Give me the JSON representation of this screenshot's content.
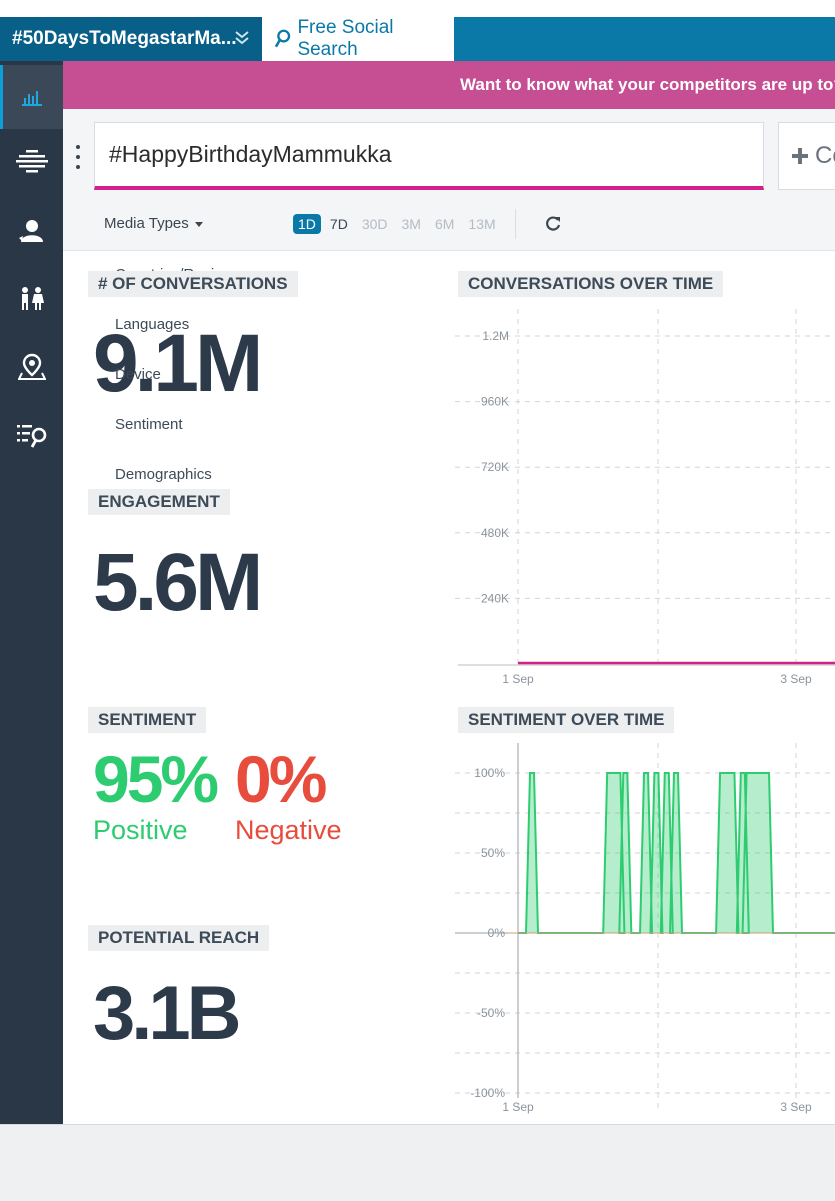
{
  "tabs": {
    "hashtag_tab": "#50DaysToMegastarMa...",
    "free_search_tab": "Free Social Search"
  },
  "banner": {
    "text": "Want to know what your competitors are up to? Cl"
  },
  "search": {
    "value": "#HappyBirthdayMammukka",
    "compare_label": "Co"
  },
  "filters": {
    "media_types": "Media Types",
    "ranges": [
      "1D",
      "7D",
      "30D",
      "3M",
      "6M",
      "13M"
    ],
    "active_range": "1D"
  },
  "dropdown_items": [
    "Countries/Regions",
    "Languages",
    "Device",
    "Sentiment",
    "Demographics"
  ],
  "conversations": {
    "label": "# OF CONVERSATIONS",
    "value": "9.1M"
  },
  "engagement": {
    "label": "ENGAGEMENT",
    "value": "5.6M"
  },
  "sentiment": {
    "label": "SENTIMENT",
    "positive_value": "95%",
    "positive_label": "Positive",
    "negative_value": "0%",
    "negative_label": "Negative"
  },
  "reach": {
    "label": "POTENTIAL REACH",
    "value": "3.1B"
  },
  "colors": {
    "accent": "#0b79a8",
    "sidebar": "#2a3746",
    "banner": "#c64e93",
    "positive": "#2ecc71",
    "negative": "#e74c3c",
    "line": "#d4208a"
  },
  "icons": [
    "bar-chart-icon",
    "hamburger-grid-icon",
    "user-icon",
    "people-icon",
    "map-pin-icon",
    "search-list-icon"
  ],
  "chart_data": [
    {
      "type": "line",
      "title": "CONVERSATIONS OVER TIME",
      "x_ticks": [
        "1 Sep",
        "3 Sep"
      ],
      "y_ticks": [
        "1.2M",
        "960K",
        "720K",
        "480K",
        "240K"
      ],
      "ylim": [
        0,
        1200000
      ],
      "grid": true,
      "series": [
        {
          "x": [
            "1 Sep",
            "3 Sep"
          ],
          "values": [
            0,
            0
          ]
        }
      ]
    },
    {
      "type": "area",
      "title": "SENTIMENT OVER TIME",
      "x_ticks": [
        "1 Sep",
        "3 Sep"
      ],
      "y_ticks": [
        "100%",
        "50%",
        "0%",
        "-50%",
        "-100%"
      ],
      "ylim": [
        -100,
        100
      ],
      "grid": true,
      "series": [
        {
          "spikes_x_fraction": [
            0.25,
            0.585,
            0.625,
            0.655,
            0.745,
            0.79,
            0.835,
            0.875,
            1.075,
            1.12,
            1.165,
            1.19,
            1.24,
            1.27
          ],
          "value": 100
        }
      ]
    }
  ]
}
